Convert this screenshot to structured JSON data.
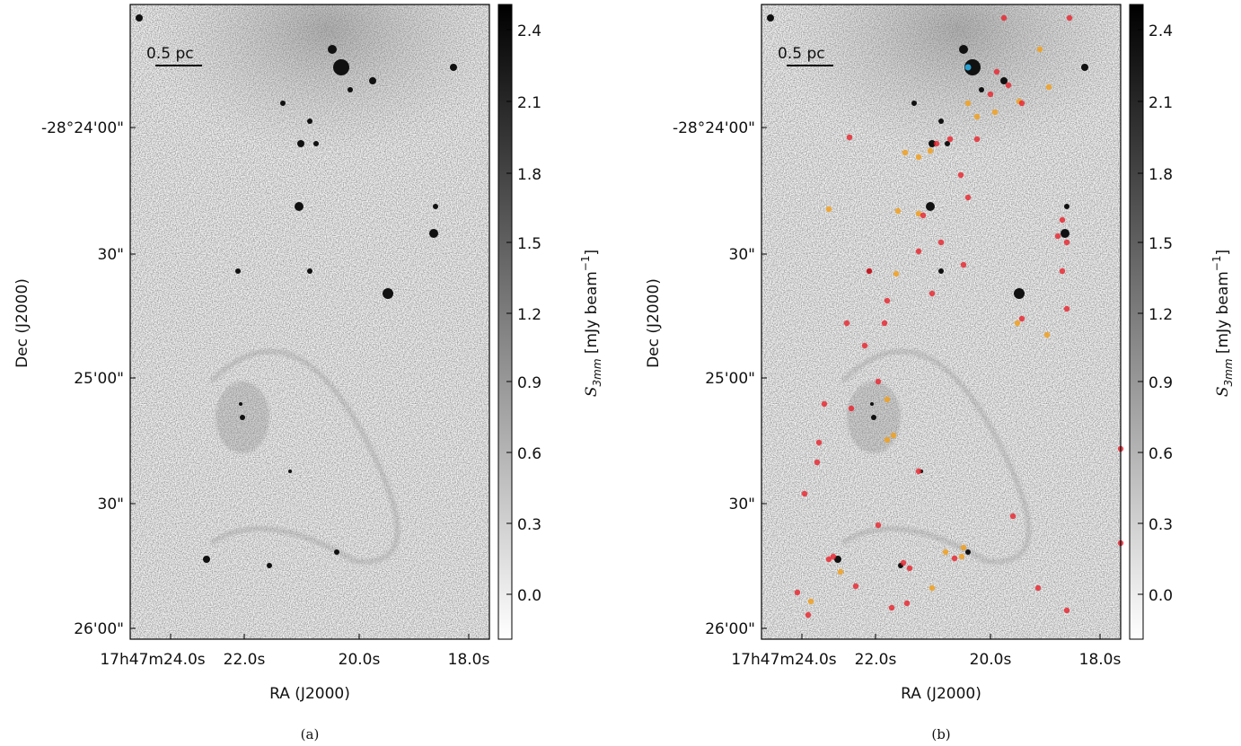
{
  "figure": {
    "panels": [
      {
        "caption": "(a)",
        "scale_bar": "0.5 pc",
        "xticks": [
          "17h47m24.0s",
          "22.0s",
          "20.0s",
          "18.0s"
        ],
        "yticks": [
          "-28°24'00\"",
          "30\"",
          "25'00\"",
          "30\"",
          "26'00\""
        ],
        "xlabel": "RA (J2000)",
        "ylabel": "Dec (J2000)",
        "colorbar": {
          "ticks": [
            "2.4",
            "2.1",
            "1.8",
            "1.5",
            "1.2",
            "0.9",
            "0.6",
            "0.3",
            "0.0"
          ],
          "label": {
            "symbol": "S",
            "subscript": "3mm",
            "unit": " [mJy beam",
            "exponent": "−1",
            "close": "]"
          }
        }
      },
      {
        "caption": "(b)",
        "scale_bar": "0.5 pc",
        "xticks": [
          "17h47m24.0s",
          "22.0s",
          "20.0s",
          "18.0s"
        ],
        "yticks": [
          "-28°24'00\"",
          "30\"",
          "25'00\"",
          "30\"",
          "26'00\""
        ],
        "xlabel": "RA (J2000)",
        "ylabel": "Dec (J2000)",
        "colorbar": {
          "ticks": [
            "2.4",
            "2.1",
            "1.8",
            "1.5",
            "1.2",
            "0.9",
            "0.6",
            "0.3",
            "0.0"
          ],
          "label": {
            "symbol": "S",
            "subscript": "3mm",
            "unit": " [mJy beam",
            "exponent": "−1",
            "close": "]"
          }
        }
      }
    ]
  }
}
